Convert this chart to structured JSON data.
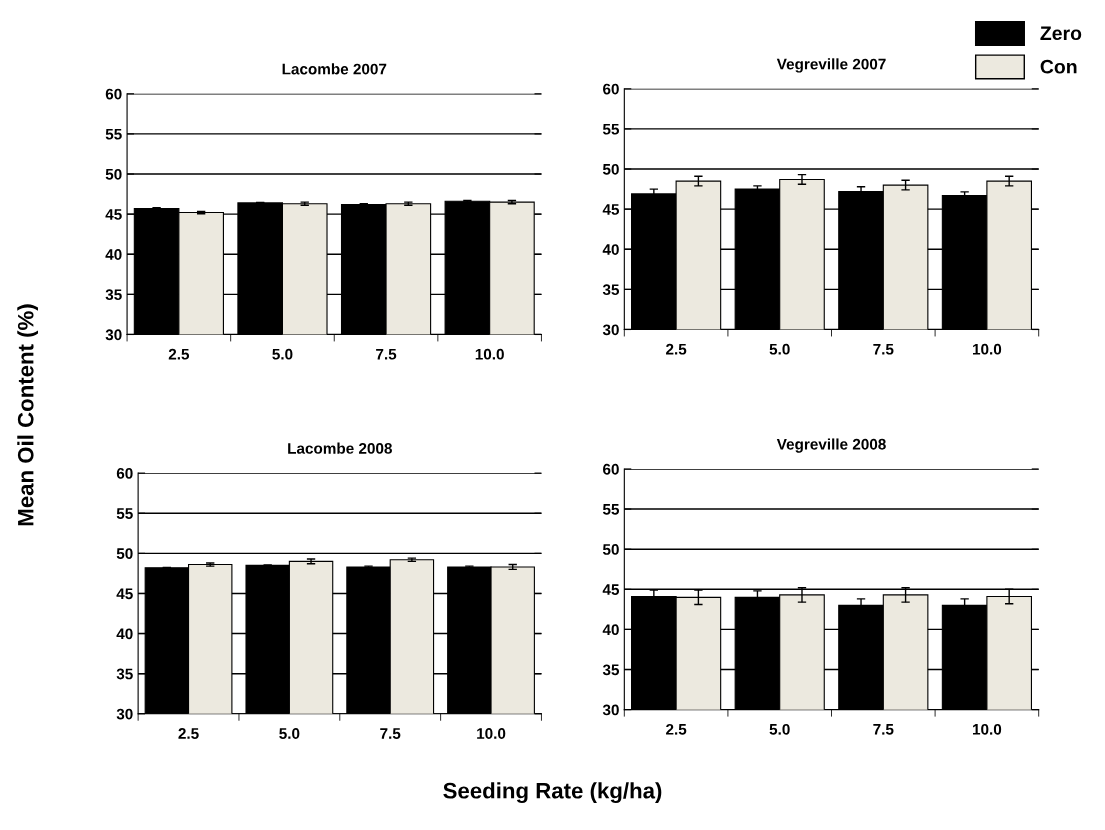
{
  "chart_data": [
    {
      "type": "bar",
      "title": "Lacombe 2007",
      "ylabel": "Mean Oil Content (%)",
      "categories": [
        "2.5",
        "5.0",
        "7.5",
        "10.0"
      ],
      "ylim": [
        30,
        60
      ],
      "yticks": [
        30,
        35,
        40,
        45,
        50,
        55,
        60
      ],
      "grid": "y",
      "series": [
        {
          "color": "#000000",
          "values": [
            45.7,
            46.4,
            46.2,
            46.6
          ],
          "errors": [
            0.1,
            0.05,
            0.1,
            0.1
          ]
        },
        {
          "color": "#ece9df",
          "values": [
            45.2,
            46.3,
            46.3,
            46.5
          ],
          "errors": [
            0.15,
            0.2,
            0.2,
            0.2
          ]
        }
      ]
    },
    {
      "type": "bar",
      "title": "Vegreville 2007",
      "legend": "top right",
      "categories": [
        "2.5",
        "5.0",
        "7.5",
        "10.0"
      ],
      "ylim": [
        30,
        60
      ],
      "yticks": [
        30,
        35,
        40,
        45,
        50,
        55,
        60
      ],
      "grid": "y",
      "series": [
        {
          "name": "Zero",
          "color": "#000000",
          "values": [
            46.9,
            47.5,
            47.2,
            46.7
          ],
          "errors": [
            0.6,
            0.4,
            0.6,
            0.45
          ]
        },
        {
          "name": "Con",
          "color": "#ece9df",
          "values": [
            48.5,
            48.7,
            48.0,
            48.5
          ],
          "errors": [
            0.6,
            0.6,
            0.6,
            0.6
          ]
        }
      ]
    },
    {
      "type": "bar",
      "title": "Lacombe 2008",
      "xlabel": "Seeding Rate (kg/ha)",
      "categories": [
        "2.5",
        "5.0",
        "7.5",
        "10.0"
      ],
      "ylim": [
        30,
        60
      ],
      "yticks": [
        30,
        35,
        40,
        45,
        50,
        55,
        60
      ],
      "grid": "y",
      "series": [
        {
          "color": "#000000",
          "values": [
            48.2,
            48.5,
            48.3,
            48.3
          ],
          "errors": [
            0.05,
            0.05,
            0.1,
            0.1
          ]
        },
        {
          "color": "#ece9df",
          "values": [
            48.6,
            49.0,
            49.2,
            48.3
          ],
          "errors": [
            0.2,
            0.3,
            0.2,
            0.3
          ]
        }
      ]
    },
    {
      "type": "bar",
      "title": "Vegreville 2008",
      "categories": [
        "2.5",
        "5.0",
        "7.5",
        "10.0"
      ],
      "ylim": [
        30,
        60
      ],
      "yticks": [
        30,
        35,
        40,
        45,
        50,
        55,
        60
      ],
      "grid": "y",
      "series": [
        {
          "color": "#000000",
          "values": [
            44.1,
            44.0,
            43.0,
            43.0
          ],
          "errors": [
            0.8,
            0.8,
            0.8,
            0.8
          ]
        },
        {
          "color": "#ece9df",
          "values": [
            44.0,
            44.3,
            44.3,
            44.1
          ],
          "errors": [
            0.9,
            0.9,
            0.9,
            0.9
          ]
        }
      ]
    }
  ]
}
